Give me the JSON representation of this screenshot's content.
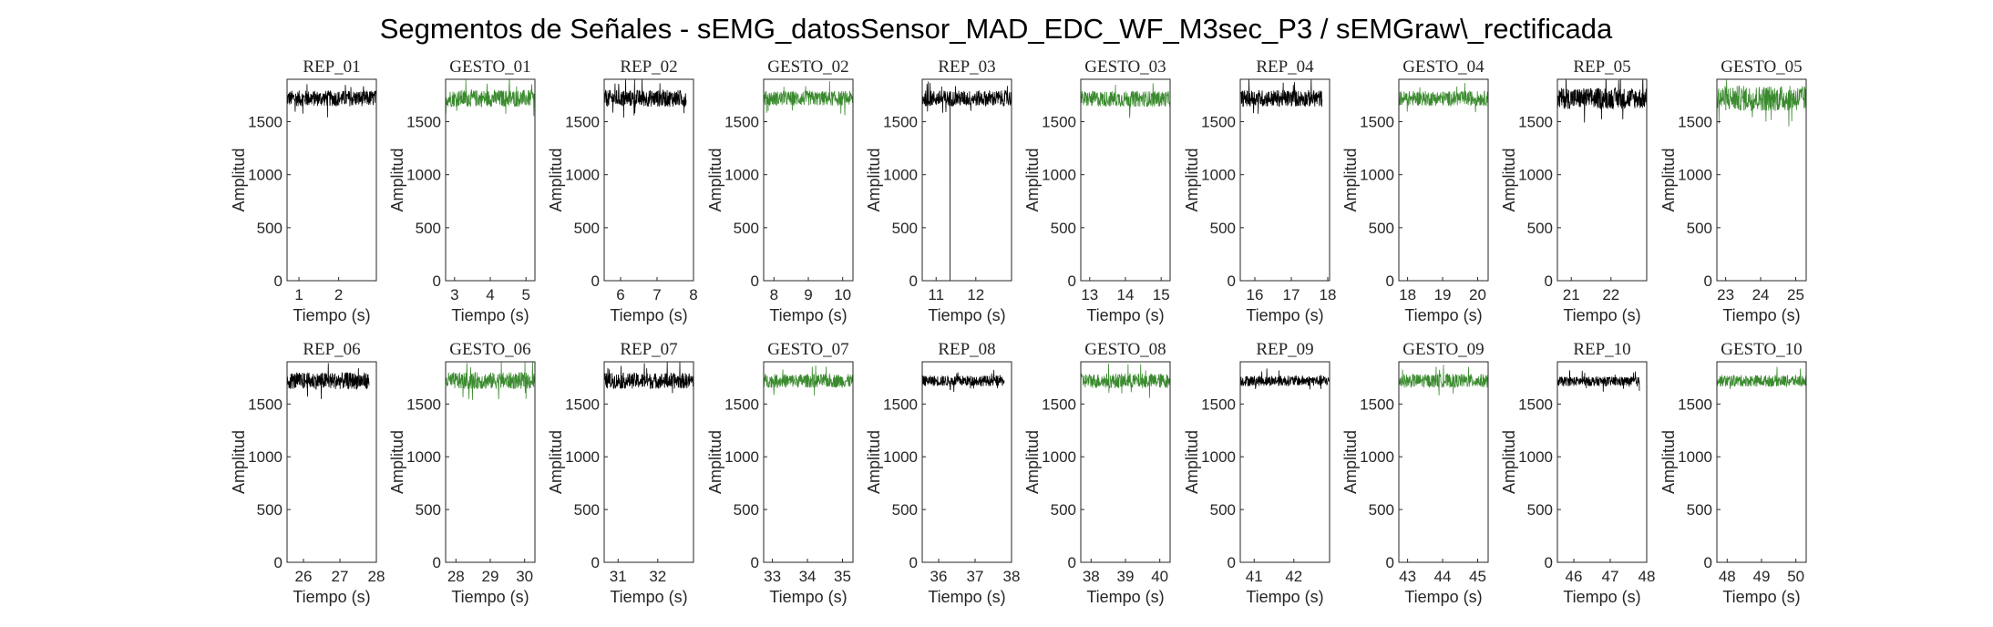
{
  "figure": {
    "title": "Segmentos de Señales - sEMG_datosSensor_MAD_EDC_WF_M3sec_P3 / sEMGraw\\_rectificada"
  },
  "colors": {
    "rep": "#000000",
    "gesto": "#3a8a2e",
    "axis": "#262626",
    "background": "#ffffff"
  },
  "chart_data": [
    {
      "type": "line",
      "title": "REP_01",
      "xlabel": "Tiempo (s)",
      "ylabel": "Amplitud",
      "xlim": [
        0.7,
        2.95
      ],
      "ylim": [
        0,
        1900
      ],
      "xticks": [
        1,
        2
      ],
      "yticks": [
        0,
        500,
        1000,
        1500
      ],
      "series": [
        {
          "x_range": [
            0.7,
            2.95
          ],
          "level": 1720,
          "band": [
            1650,
            1800
          ],
          "color": "#000000"
        }
      ]
    },
    {
      "type": "line",
      "title": "GESTO_01",
      "xlabel": "Tiempo (s)",
      "ylabel": "Amplitud",
      "xlim": [
        2.75,
        5.25
      ],
      "ylim": [
        0,
        1900
      ],
      "xticks": [
        3,
        4,
        5
      ],
      "yticks": [
        0,
        500,
        1000,
        1500
      ],
      "series": [
        {
          "x_range": [
            2.75,
            5.25
          ],
          "level": 1720,
          "band": [
            1640,
            1800
          ],
          "color": "#3a8a2e"
        }
      ]
    },
    {
      "type": "line",
      "title": "REP_02",
      "xlabel": "Tiempo (s)",
      "ylabel": "Amplitud",
      "xlim": [
        5.55,
        8.0
      ],
      "ylim": [
        0,
        1900
      ],
      "xticks": [
        6,
        7,
        8
      ],
      "yticks": [
        0,
        500,
        1000,
        1500
      ],
      "series": [
        {
          "x_range": [
            5.55,
            7.8
          ],
          "level": 1720,
          "band": [
            1640,
            1800
          ],
          "color": "#000000"
        }
      ]
    },
    {
      "type": "line",
      "title": "GESTO_02",
      "xlabel": "Tiempo (s)",
      "ylabel": "Amplitud",
      "xlim": [
        7.7,
        10.3
      ],
      "ylim": [
        0,
        1900
      ],
      "xticks": [
        8,
        9,
        10
      ],
      "yticks": [
        0,
        500,
        1000,
        1500
      ],
      "series": [
        {
          "x_range": [
            7.7,
            10.3
          ],
          "level": 1720,
          "band": [
            1650,
            1790
          ],
          "color": "#3a8a2e"
        }
      ]
    },
    {
      "type": "line",
      "title": "REP_03",
      "xlabel": "Tiempo (s)",
      "ylabel": "Amplitud",
      "xlim": [
        10.65,
        12.9
      ],
      "ylim": [
        0,
        1900
      ],
      "xticks": [
        11,
        12
      ],
      "yticks": [
        0,
        500,
        1000,
        1500
      ],
      "series": [
        {
          "x_range": [
            10.65,
            12.9
          ],
          "level": 1720,
          "band": [
            1650,
            1800
          ],
          "color": "#000000",
          "spike": {
            "x": 11.35,
            "y": 0
          }
        }
      ]
    },
    {
      "type": "line",
      "title": "GESTO_03",
      "xlabel": "Tiempo (s)",
      "ylabel": "Amplitud",
      "xlim": [
        12.75,
        15.25
      ],
      "ylim": [
        0,
        1900
      ],
      "xticks": [
        13,
        14,
        15
      ],
      "yticks": [
        0,
        500,
        1000,
        1500
      ],
      "series": [
        {
          "x_range": [
            12.75,
            15.25
          ],
          "level": 1715,
          "band": [
            1640,
            1790
          ],
          "color": "#3a8a2e"
        }
      ]
    },
    {
      "type": "line",
      "title": "REP_04",
      "xlabel": "Tiempo (s)",
      "ylabel": "Amplitud",
      "xlim": [
        15.6,
        18.05
      ],
      "ylim": [
        0,
        1900
      ],
      "xticks": [
        16,
        17,
        18
      ],
      "yticks": [
        0,
        500,
        1000,
        1500
      ],
      "series": [
        {
          "x_range": [
            15.6,
            17.85
          ],
          "level": 1720,
          "band": [
            1640,
            1800
          ],
          "color": "#000000"
        }
      ]
    },
    {
      "type": "line",
      "title": "GESTO_04",
      "xlabel": "Tiempo (s)",
      "ylabel": "Amplitud",
      "xlim": [
        17.75,
        20.3
      ],
      "ylim": [
        0,
        1900
      ],
      "xticks": [
        18,
        19,
        20
      ],
      "yticks": [
        0,
        500,
        1000,
        1500
      ],
      "series": [
        {
          "x_range": [
            17.75,
            20.3
          ],
          "level": 1720,
          "band": [
            1650,
            1790
          ],
          "color": "#3a8a2e"
        }
      ]
    },
    {
      "type": "line",
      "title": "REP_05",
      "xlabel": "Tiempo (s)",
      "ylabel": "Amplitud",
      "xlim": [
        20.65,
        22.9
      ],
      "ylim": [
        0,
        1900
      ],
      "xticks": [
        21,
        22
      ],
      "yticks": [
        0,
        500,
        1000,
        1500
      ],
      "series": [
        {
          "x_range": [
            20.65,
            22.9
          ],
          "level": 1720,
          "band": [
            1620,
            1820
          ],
          "color": "#000000"
        }
      ]
    },
    {
      "type": "line",
      "title": "GESTO_05",
      "xlabel": "Tiempo (s)",
      "ylabel": "Amplitud",
      "xlim": [
        22.75,
        25.3
      ],
      "ylim": [
        0,
        1900
      ],
      "xticks": [
        23,
        24,
        25
      ],
      "yticks": [
        0,
        500,
        1000,
        1500
      ],
      "series": [
        {
          "x_range": [
            22.75,
            25.3
          ],
          "level": 1720,
          "band": [
            1600,
            1840
          ],
          "color": "#3a8a2e"
        }
      ]
    },
    {
      "type": "line",
      "title": "REP_06",
      "xlabel": "Tiempo (s)",
      "ylabel": "Amplitud",
      "xlim": [
        25.55,
        28.0
      ],
      "ylim": [
        0,
        1900
      ],
      "xticks": [
        26,
        27,
        28
      ],
      "yticks": [
        0,
        500,
        1000,
        1500
      ],
      "series": [
        {
          "x_range": [
            25.55,
            27.8
          ],
          "level": 1720,
          "band": [
            1640,
            1800
          ],
          "color": "#000000"
        }
      ]
    },
    {
      "type": "line",
      "title": "GESTO_06",
      "xlabel": "Tiempo (s)",
      "ylabel": "Amplitud",
      "xlim": [
        27.7,
        30.3
      ],
      "ylim": [
        0,
        1900
      ],
      "xticks": [
        28,
        29,
        30
      ],
      "yticks": [
        0,
        500,
        1000,
        1500
      ],
      "series": [
        {
          "x_range": [
            27.7,
            30.3
          ],
          "level": 1720,
          "band": [
            1640,
            1800
          ],
          "color": "#3a8a2e"
        }
      ]
    },
    {
      "type": "line",
      "title": "REP_07",
      "xlabel": "Tiempo (s)",
      "ylabel": "Amplitud",
      "xlim": [
        30.65,
        32.9
      ],
      "ylim": [
        0,
        1900
      ],
      "xticks": [
        31,
        32
      ],
      "yticks": [
        0,
        500,
        1000,
        1500
      ],
      "series": [
        {
          "x_range": [
            30.65,
            32.9
          ],
          "level": 1720,
          "band": [
            1650,
            1800
          ],
          "color": "#000000"
        }
      ]
    },
    {
      "type": "line",
      "title": "GESTO_07",
      "xlabel": "Tiempo (s)",
      "ylabel": "Amplitud",
      "xlim": [
        32.75,
        35.3
      ],
      "ylim": [
        0,
        1900
      ],
      "xticks": [
        33,
        34,
        35
      ],
      "yticks": [
        0,
        500,
        1000,
        1500
      ],
      "series": [
        {
          "x_range": [
            32.75,
            35.3
          ],
          "level": 1720,
          "band": [
            1660,
            1790
          ],
          "color": "#3a8a2e"
        }
      ]
    },
    {
      "type": "line",
      "title": "REP_08",
      "xlabel": "Tiempo (s)",
      "ylabel": "Amplitud",
      "xlim": [
        35.55,
        38.0
      ],
      "ylim": [
        0,
        1900
      ],
      "xticks": [
        36,
        37,
        38
      ],
      "yticks": [
        0,
        500,
        1000,
        1500
      ],
      "series": [
        {
          "x_range": [
            35.55,
            37.8
          ],
          "level": 1720,
          "band": [
            1670,
            1770
          ],
          "color": "#000000"
        }
      ]
    },
    {
      "type": "line",
      "title": "GESTO_08",
      "xlabel": "Tiempo (s)",
      "ylabel": "Amplitud",
      "xlim": [
        37.7,
        40.3
      ],
      "ylim": [
        0,
        1900
      ],
      "xticks": [
        38,
        39,
        40
      ],
      "yticks": [
        0,
        500,
        1000,
        1500
      ],
      "series": [
        {
          "x_range": [
            37.7,
            40.3
          ],
          "level": 1720,
          "band": [
            1660,
            1800
          ],
          "color": "#3a8a2e"
        }
      ]
    },
    {
      "type": "line",
      "title": "REP_09",
      "xlabel": "Tiempo (s)",
      "ylabel": "Amplitud",
      "xlim": [
        40.65,
        42.9
      ],
      "ylim": [
        0,
        1900
      ],
      "xticks": [
        41,
        42
      ],
      "yticks": [
        0,
        500,
        1000,
        1500
      ],
      "series": [
        {
          "x_range": [
            40.65,
            42.9
          ],
          "level": 1720,
          "band": [
            1670,
            1770
          ],
          "color": "#000000"
        }
      ]
    },
    {
      "type": "line",
      "title": "GESTO_09",
      "xlabel": "Tiempo (s)",
      "ylabel": "Amplitud",
      "xlim": [
        42.75,
        45.3
      ],
      "ylim": [
        0,
        1900
      ],
      "xticks": [
        43,
        44,
        45
      ],
      "yticks": [
        0,
        500,
        1000,
        1500
      ],
      "series": [
        {
          "x_range": [
            42.75,
            45.3
          ],
          "level": 1720,
          "band": [
            1660,
            1790
          ],
          "color": "#3a8a2e"
        }
      ]
    },
    {
      "type": "line",
      "title": "REP_10",
      "xlabel": "Tiempo (s)",
      "ylabel": "Amplitud",
      "xlim": [
        45.55,
        48.0
      ],
      "ylim": [
        0,
        1900
      ],
      "xticks": [
        46,
        47,
        48
      ],
      "yticks": [
        0,
        500,
        1000,
        1500
      ],
      "series": [
        {
          "x_range": [
            45.55,
            47.8
          ],
          "level": 1715,
          "band": [
            1670,
            1760
          ],
          "color": "#000000"
        }
      ]
    },
    {
      "type": "line",
      "title": "GESTO_10",
      "xlabel": "Tiempo (s)",
      "ylabel": "Amplitud",
      "xlim": [
        47.7,
        50.3
      ],
      "ylim": [
        0,
        1900
      ],
      "xticks": [
        48,
        49,
        50
      ],
      "yticks": [
        0,
        500,
        1000,
        1500
      ],
      "series": [
        {
          "x_range": [
            47.7,
            50.3
          ],
          "level": 1720,
          "band": [
            1670,
            1780
          ],
          "color": "#3a8a2e"
        }
      ]
    }
  ]
}
